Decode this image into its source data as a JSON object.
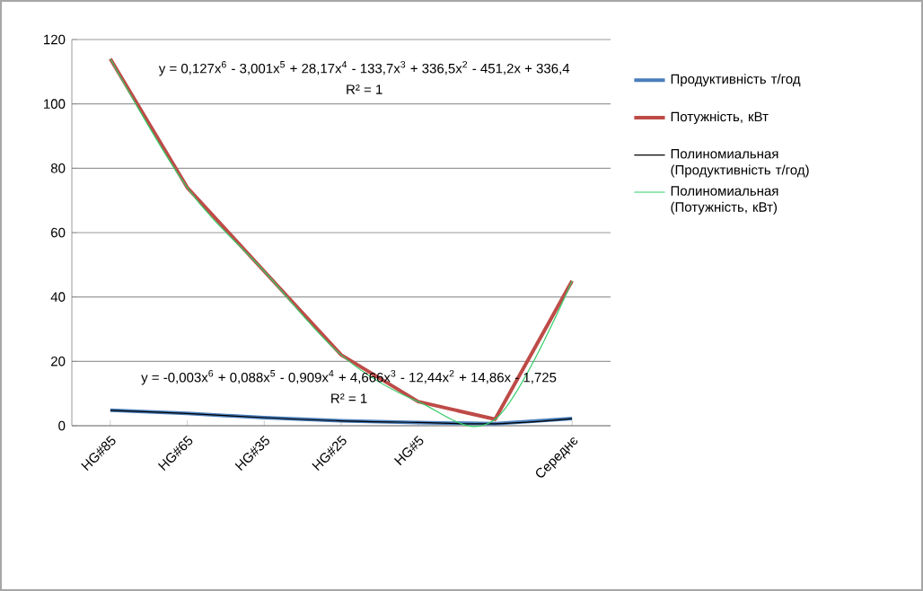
{
  "chart_data": {
    "type": "line",
    "categories": [
      "HG#85",
      "HG#65",
      "HG#35",
      "HG#25",
      "HG#5",
      null,
      "Середнє"
    ],
    "series": [
      {
        "name": "Продуктивність т/год",
        "color": "#4a7ebb",
        "values": [
          4.8,
          3.8,
          2.5,
          1.5,
          1,
          0.6,
          2.2
        ]
      },
      {
        "name": "Потужність, кВт",
        "color": "#be4b48",
        "values": [
          114,
          74,
          48,
          22,
          7.5,
          2,
          45
        ]
      },
      {
        "name": "Полиномиальная (Продуктивність т/год)",
        "color": "#000000",
        "values": [
          4.8,
          3.8,
          2.5,
          1.5,
          1,
          0.6,
          2.2
        ]
      },
      {
        "name": "Полиномиальная (Потужність, кВт)",
        "color": "#33cc66",
        "values": [
          114,
          74,
          48,
          22,
          7.5,
          2,
          45
        ]
      }
    ],
    "ylim": [
      0,
      120
    ],
    "yticks": [
      0,
      20,
      40,
      60,
      80,
      100,
      120
    ],
    "grid": "y",
    "legend": "right",
    "annotations": [
      "y = 0,127x$^{6}$ - 3,001x$^{5}$ + 28,17x$^{4}$ - 133,7x$^{3}$ + 336,5x$^{2}$ - 451,2x + 336,4",
      "R² = 1",
      "y = -0,003x$^{6}$ + 0,088x$^{5}$ - 0,909x$^{4}$ + 4,666x$^{3}$ - 12,44x$^{2}$ + 14,86x - 1,725",
      "R² = 1"
    ]
  }
}
